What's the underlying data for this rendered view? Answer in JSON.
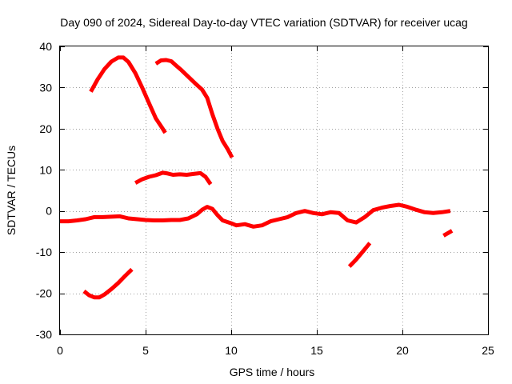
{
  "chart_data": {
    "type": "line",
    "title": "Day 090 of 2024, Sidereal Day-to-day VTEC variation (SDTVAR) for receiver ucag",
    "xlabel": "GPS time / hours",
    "ylabel": "SDTVAR / TECUs",
    "xlim": [
      0,
      25
    ],
    "ylim": [
      -30,
      40
    ],
    "x_ticks": [
      0,
      5,
      10,
      15,
      20,
      25
    ],
    "y_ticks": [
      -30,
      -20,
      -10,
      0,
      10,
      20,
      30,
      40
    ],
    "x_tick_labels": [
      "0",
      "5",
      "10",
      "15",
      "20",
      "25"
    ],
    "y_tick_labels": [
      "-30",
      "-20",
      "-10",
      "0",
      "10",
      "20",
      "30",
      "40"
    ],
    "grid": true,
    "color": "#ff0000",
    "series": [
      {
        "name": "arc-main",
        "x": [
          0.0,
          0.5,
          1.0,
          1.5,
          2.0,
          2.5,
          3.0,
          3.5,
          4.0,
          4.5,
          5.0,
          5.5,
          6.0,
          6.5,
          7.0,
          7.5,
          8.0,
          8.3,
          8.6,
          8.9,
          9.2,
          9.5,
          10.0,
          10.3,
          10.8,
          11.3,
          11.8,
          12.3,
          12.8,
          13.3,
          13.8,
          14.3,
          14.8,
          15.3,
          15.8,
          16.3,
          16.8,
          17.3,
          17.8,
          18.3,
          18.8,
          19.3,
          19.8,
          20.3,
          20.8,
          21.3,
          21.8,
          22.3,
          22.8
        ],
        "y": [
          -2.5,
          -2.5,
          -2.3,
          -2.0,
          -1.5,
          -1.5,
          -1.4,
          -1.3,
          -1.8,
          -2.0,
          -2.2,
          -2.3,
          -2.3,
          -2.2,
          -2.2,
          -1.8,
          -0.8,
          0.3,
          1.0,
          0.5,
          -1.0,
          -2.3,
          -3.0,
          -3.5,
          -3.2,
          -3.8,
          -3.5,
          -2.5,
          -2.0,
          -1.5,
          -0.5,
          0.0,
          -0.5,
          -0.8,
          -0.3,
          -0.5,
          -2.3,
          -2.8,
          -1.5,
          0.2,
          0.8,
          1.2,
          1.5,
          1.0,
          0.3,
          -0.3,
          -0.5,
          -0.3,
          0.0
        ]
      },
      {
        "name": "arc-high-1",
        "x": [
          1.8,
          2.2,
          2.6,
          3.0,
          3.4,
          3.7,
          4.0,
          4.4,
          4.8,
          5.2,
          5.6,
          6.0,
          6.15
        ],
        "y": [
          29.0,
          32.0,
          34.5,
          36.3,
          37.3,
          37.3,
          36.2,
          33.5,
          30.0,
          26.2,
          22.5,
          20.0,
          19.0
        ]
      },
      {
        "name": "arc-high-2",
        "x": [
          5.6,
          5.9,
          6.2,
          6.5,
          6.8,
          7.1,
          7.5,
          7.9,
          8.3,
          8.6,
          8.9,
          9.2,
          9.5,
          9.8,
          10.05
        ],
        "y": [
          35.8,
          36.6,
          36.7,
          36.4,
          35.3,
          34.2,
          32.6,
          31.0,
          29.5,
          27.5,
          23.5,
          20.0,
          17.0,
          15.0,
          13.0
        ]
      },
      {
        "name": "arc-mid",
        "x": [
          4.4,
          4.8,
          5.2,
          5.6,
          6.0,
          6.3,
          6.6,
          7.0,
          7.4,
          7.8,
          8.2,
          8.5,
          8.8
        ],
        "y": [
          6.8,
          7.7,
          8.3,
          8.7,
          9.3,
          9.1,
          8.8,
          8.9,
          8.8,
          9.0,
          9.2,
          8.3,
          6.5
        ]
      },
      {
        "name": "arc-low-1",
        "x": [
          1.4,
          1.7,
          2.0,
          2.3,
          2.6,
          3.0,
          3.4,
          3.8,
          4.2
        ],
        "y": [
          -19.5,
          -20.5,
          -21.0,
          -21.0,
          -20.3,
          -19.0,
          -17.5,
          -15.8,
          -14.2
        ]
      },
      {
        "name": "arc-low-2",
        "x": [
          16.9,
          17.3,
          17.7,
          18.1
        ],
        "y": [
          -13.5,
          -11.8,
          -9.8,
          -7.8
        ]
      },
      {
        "name": "arc-low-3",
        "x": [
          22.4,
          22.9
        ],
        "y": [
          -6.0,
          -4.8
        ]
      }
    ]
  }
}
